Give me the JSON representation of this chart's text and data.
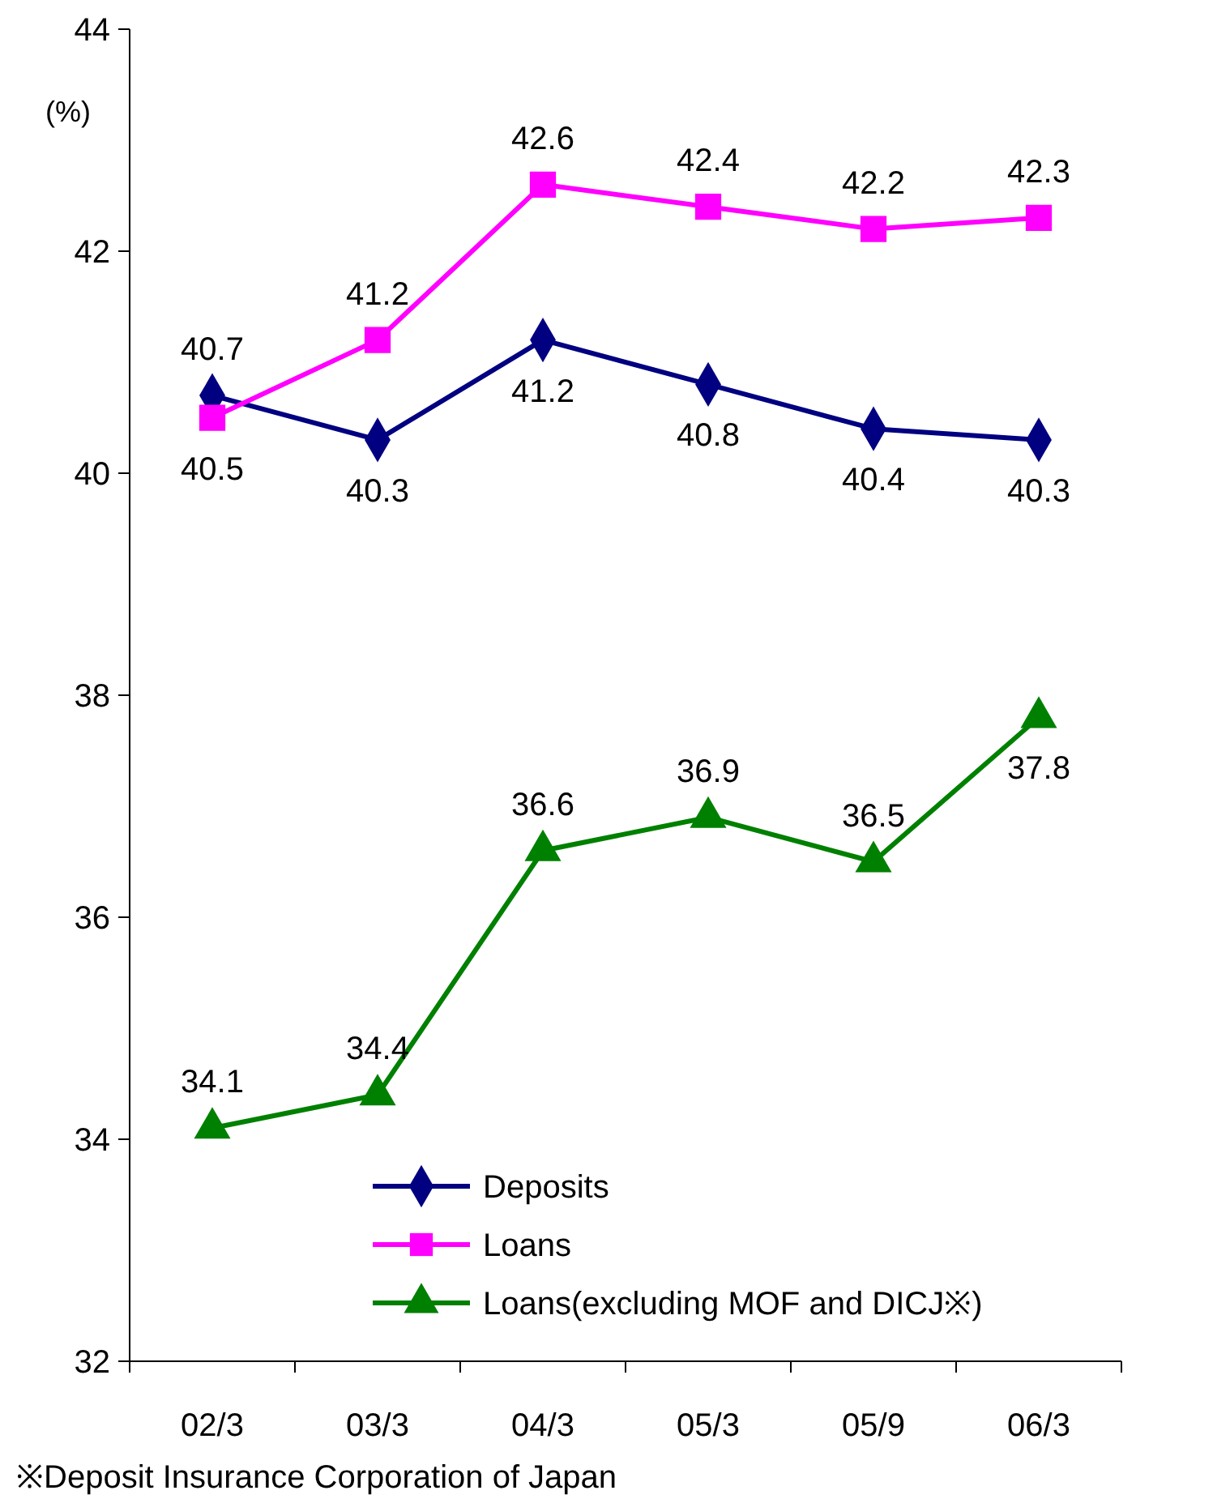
{
  "chart_data": {
    "type": "line",
    "ylabel": "(%)",
    "categories": [
      "02/3",
      "03/3",
      "04/3",
      "05/3",
      "05/9",
      "06/3"
    ],
    "ylim": [
      32,
      44
    ],
    "yticks": [
      32,
      34,
      36,
      38,
      40,
      42,
      44
    ],
    "grid": false,
    "legend": "bottom",
    "data_labels": true,
    "series": [
      {
        "name": "Deposits",
        "color": "#000080",
        "marker": "diamond",
        "values": [
          40.7,
          40.3,
          41.2,
          40.8,
          40.4,
          40.3
        ]
      },
      {
        "name": "Loans",
        "color": "#ff00ff",
        "marker": "square",
        "values": [
          40.5,
          41.2,
          42.6,
          42.4,
          42.2,
          42.3
        ]
      },
      {
        "name": "Loans(excluding MOF and DICJ※)",
        "color": "#008000",
        "marker": "triangle",
        "values": [
          34.1,
          34.4,
          36.6,
          36.9,
          36.5,
          37.8
        ]
      }
    ],
    "annotations": [
      "※Deposit Insurance Corporation of Japan"
    ]
  }
}
